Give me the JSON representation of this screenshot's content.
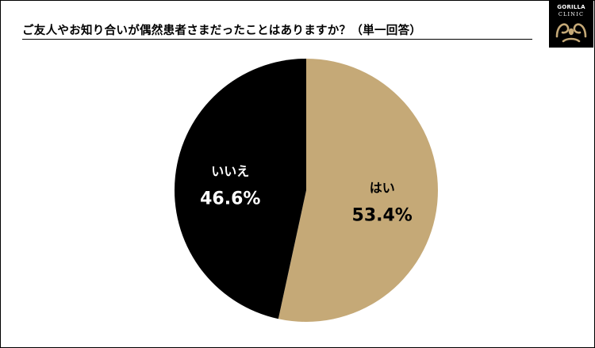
{
  "chart_data": {
    "type": "pie",
    "title": "ご友人やお知り合いが偶然患者さまだったことはありますか？（単一回答）",
    "slices": [
      {
        "label": "はい",
        "value": 53.4,
        "value_text": "53.4%",
        "color": "#c5a977",
        "text_color": "#000000"
      },
      {
        "label": "いいえ",
        "value": 46.6,
        "value_text": "46.6%",
        "color": "#000000",
        "text_color": "#ffffff"
      }
    ],
    "start_angle_deg": 0,
    "direction": "clockwise",
    "legend": "none"
  },
  "logo": {
    "line1": "GORILLA",
    "line2": "CLINIC"
  },
  "colors": {
    "background": "#ffffff",
    "border": "#000000",
    "logo_background": "#000000"
  }
}
